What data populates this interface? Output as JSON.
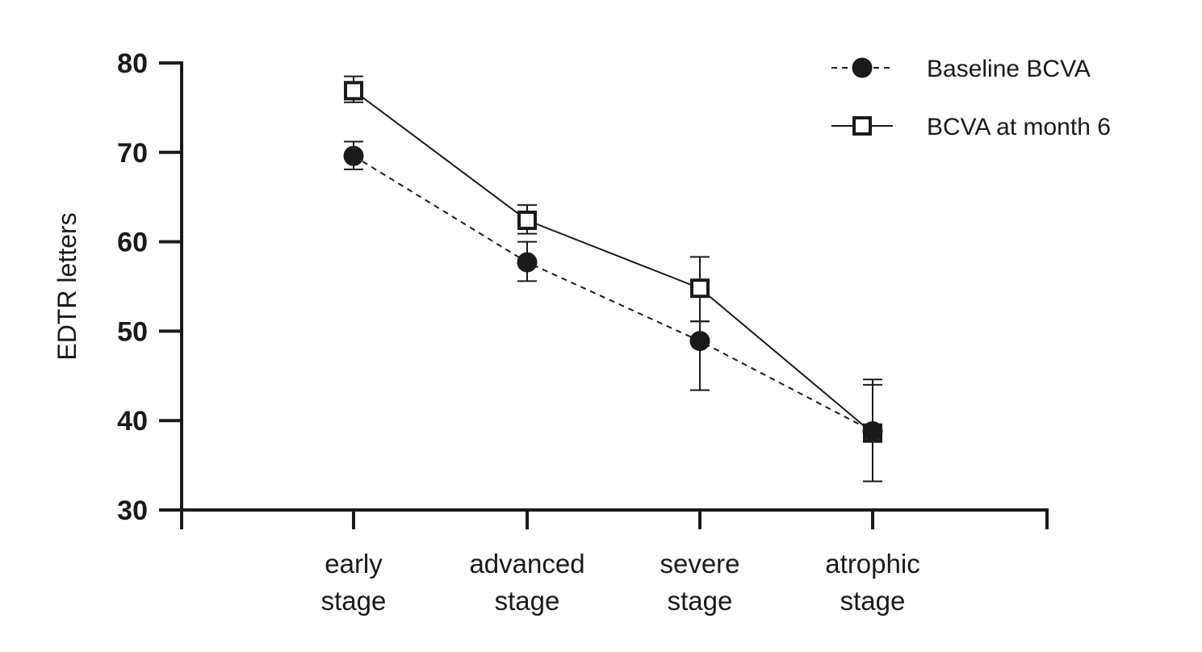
{
  "chart_data": {
    "type": "line",
    "ylabel": "EDTR letters",
    "xlabel": "",
    "ylim": [
      30,
      80
    ],
    "yticks": [
      30,
      40,
      50,
      60,
      70,
      80
    ],
    "categories": [
      [
        "early",
        "stage"
      ],
      [
        "advanced",
        "stage"
      ],
      [
        "severe",
        "stage"
      ],
      [
        "atrophic",
        "stage"
      ]
    ],
    "legend_position": "top-right",
    "grid": false,
    "series": [
      {
        "name": "Baseline BCVA",
        "marker": "filled-circle",
        "line": "dashed",
        "values": [
          69.6,
          57.7,
          48.9,
          38.8
        ],
        "error": [
          [
            68.1,
            71.2
          ],
          [
            55.6,
            60.0
          ],
          [
            43.4,
            51.1
          ],
          [
            33.2,
            44.0
          ]
        ]
      },
      {
        "name": "BCVA at month 6",
        "marker": "open-square",
        "line": "solid",
        "values": [
          76.9,
          62.4,
          54.8,
          38.6
        ],
        "error": [
          [
            75.6,
            78.5
          ],
          [
            60.9,
            64.1
          ],
          [
            51.1,
            58.3
          ],
          [
            33.2,
            44.6
          ]
        ]
      }
    ]
  }
}
